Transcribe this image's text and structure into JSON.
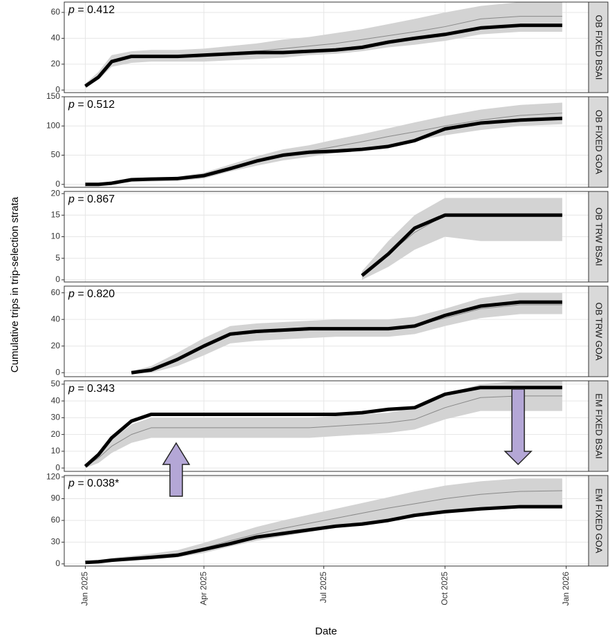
{
  "ylabel": "Cumulative trips in trip-selection strata",
  "xlabel": "Date",
  "xlim": [
    -16,
    382
  ],
  "xticks": [
    {
      "value": 0,
      "label": "Jan 2025"
    },
    {
      "value": 90,
      "label": "Apr 2025"
    },
    {
      "value": 181,
      "label": "Jul 2025"
    },
    {
      "value": 273,
      "label": "Oct 2025"
    },
    {
      "value": 365,
      "label": "Jan 2026"
    }
  ],
  "chart_data": [
    {
      "type": "line",
      "strip": "OB FIXED BSAI",
      "stat_symbol": "p",
      "stat_value": "= 0.412",
      "ylim": [
        -2,
        68
      ],
      "yticks": [
        0,
        20,
        40,
        60
      ],
      "x": [
        0,
        10,
        20,
        35,
        50,
        70,
        90,
        110,
        130,
        150,
        170,
        190,
        210,
        230,
        250,
        273,
        300,
        330,
        362
      ],
      "band": {
        "color": "#d3d3d3",
        "lower": [
          2,
          8,
          18,
          21,
          22,
          22,
          22,
          23,
          24,
          25,
          27,
          28,
          30,
          33,
          35,
          38,
          43,
          45,
          45
        ],
        "upper": [
          5,
          14,
          27,
          30,
          31,
          31,
          32,
          34,
          36,
          39,
          41,
          44,
          47,
          51,
          55,
          60,
          65,
          68,
          68
        ]
      },
      "series": [
        {
          "color": "#888888",
          "values": [
            3,
            11,
            22,
            25,
            26,
            26,
            27,
            29,
            30,
            32,
            34,
            36,
            39,
            42,
            45,
            49,
            55,
            57,
            57
          ]
        },
        {
          "color": "#000000",
          "values": [
            3,
            10,
            22,
            26,
            26,
            26,
            27,
            28,
            29,
            29,
            30,
            31,
            33,
            37,
            40,
            43,
            48,
            50,
            50
          ]
        }
      ]
    },
    {
      "type": "line",
      "strip": "OB FIXED GOA",
      "stat_symbol": "p",
      "stat_value": "= 0.512",
      "ylim": [
        -5,
        150
      ],
      "yticks": [
        0,
        50,
        100,
        150
      ],
      "x": [
        0,
        10,
        20,
        35,
        50,
        70,
        90,
        110,
        130,
        150,
        170,
        190,
        210,
        230,
        250,
        273,
        300,
        330,
        362
      ],
      "band": {
        "color": "#d3d3d3",
        "lower": [
          0,
          0,
          0,
          4,
          5,
          6,
          10,
          22,
          32,
          41,
          47,
          54,
          61,
          68,
          75,
          84,
          93,
          100,
          103
        ],
        "upper": [
          2,
          2,
          5,
          11,
          12,
          13,
          20,
          34,
          48,
          60,
          67,
          77,
          86,
          96,
          106,
          117,
          128,
          136,
          140
        ]
      },
      "series": [
        {
          "color": "#888888",
          "values": [
            0,
            0,
            2,
            7,
            8,
            9,
            15,
            28,
            40,
            50,
            57,
            65,
            73,
            82,
            90,
            100,
            110,
            118,
            122
          ]
        },
        {
          "color": "#000000",
          "values": [
            0,
            0,
            2,
            8,
            9,
            10,
            15,
            27,
            40,
            50,
            55,
            57,
            60,
            65,
            75,
            95,
            105,
            110,
            113
          ]
        }
      ]
    },
    {
      "type": "line",
      "strip": "OB TRW BSAI",
      "stat_symbol": "p",
      "stat_value": "= 0.867",
      "ylim": [
        -0.5,
        20.5
      ],
      "yticks": [
        0,
        5,
        10,
        15,
        20
      ],
      "x": [
        210,
        230,
        250,
        273,
        300,
        330,
        362
      ],
      "band": {
        "color": "#d3d3d3",
        "lower": [
          0,
          3,
          7,
          10,
          9,
          9,
          9
        ],
        "upper": [
          2,
          9,
          15,
          19,
          19,
          19,
          19
        ]
      },
      "series": [
        {
          "color": "#888888",
          "values": [
            1,
            6,
            11,
            15,
            15,
            15,
            15
          ]
        },
        {
          "color": "#000000",
          "values": [
            1,
            6,
            12,
            15,
            15,
            15,
            15
          ]
        }
      ]
    },
    {
      "type": "line",
      "strip": "OB TRW GOA",
      "stat_symbol": "p",
      "stat_value": "= 0.820",
      "ylim": [
        -3,
        65
      ],
      "yticks": [
        0,
        20,
        40,
        60
      ],
      "x": [
        35,
        50,
        70,
        90,
        110,
        130,
        150,
        170,
        190,
        210,
        230,
        250,
        273,
        300,
        330,
        362
      ],
      "band": {
        "color": "#d3d3d3",
        "lower": [
          0,
          0,
          5,
          13,
          22,
          24,
          25,
          26,
          27,
          27,
          27,
          29,
          35,
          41,
          44,
          44
        ],
        "upper": [
          1,
          5,
          15,
          26,
          35,
          37,
          38,
          39,
          40,
          40,
          40,
          42,
          48,
          56,
          60,
          60
        ]
      },
      "series": [
        {
          "color": "#888888",
          "values": [
            0,
            2,
            10,
            19,
            28,
            30,
            31,
            32,
            33,
            33,
            33,
            35,
            41,
            48,
            51,
            51
          ]
        },
        {
          "color": "#000000",
          "values": [
            0,
            2,
            10,
            20,
            29,
            31,
            32,
            33,
            33,
            33,
            33,
            35,
            43,
            50,
            53,
            53
          ]
        }
      ]
    },
    {
      "type": "line",
      "strip": "EM FIXED BSAI",
      "stat_symbol": "p",
      "stat_value": "= 0.343",
      "ylim": [
        -2,
        52
      ],
      "yticks": [
        0,
        10,
        20,
        30,
        40,
        50
      ],
      "x": [
        0,
        10,
        20,
        35,
        50,
        70,
        90,
        110,
        130,
        150,
        170,
        190,
        210,
        230,
        250,
        273,
        300,
        330,
        362
      ],
      "band": {
        "color": "#d3d3d3",
        "lower": [
          0,
          3,
          9,
          15,
          18,
          18,
          18,
          18,
          18,
          18,
          18,
          19,
          20,
          21,
          23,
          29,
          34,
          34,
          34
        ],
        "upper": [
          2,
          9,
          17,
          26,
          30,
          30,
          30,
          30,
          30,
          30,
          30,
          31,
          32,
          33,
          36,
          44,
          50,
          52,
          52
        ]
      },
      "series": [
        {
          "color": "#888888",
          "values": [
            1,
            6,
            13,
            20,
            24,
            24,
            24,
            24,
            24,
            24,
            24,
            25,
            26,
            27,
            29,
            36,
            42,
            43,
            43
          ]
        },
        {
          "color": "#000000",
          "values": [
            1,
            8,
            18,
            28,
            32,
            32,
            32,
            32,
            32,
            32,
            32,
            32,
            33,
            35,
            36,
            44,
            48,
            48,
            48
          ]
        }
      ]
    },
    {
      "type": "line",
      "strip": "EM FIXED GOA",
      "stat_symbol": "p",
      "stat_value": "= 0.038*",
      "ylim": [
        -3,
        122
      ],
      "yticks": [
        0,
        30,
        60,
        90,
        120
      ],
      "x": [
        0,
        10,
        20,
        35,
        50,
        70,
        90,
        110,
        130,
        150,
        170,
        190,
        210,
        230,
        250,
        273,
        300,
        330,
        362
      ],
      "band": {
        "color": "#d3d3d3",
        "lower": [
          0,
          1,
          3,
          4,
          6,
          9,
          15,
          24,
          32,
          38,
          44,
          50,
          56,
          61,
          66,
          72,
          77,
          80,
          81
        ],
        "upper": [
          4,
          5,
          8,
          11,
          14,
          19,
          29,
          40,
          51,
          60,
          68,
          76,
          84,
          92,
          100,
          108,
          114,
          118,
          118
        ]
      },
      "series": [
        {
          "color": "#888888",
          "values": [
            2,
            3,
            5,
            7,
            10,
            14,
            22,
            32,
            41,
            49,
            56,
            63,
            70,
            77,
            83,
            90,
            96,
            100,
            101
          ]
        },
        {
          "color": "#000000",
          "values": [
            2,
            3,
            5,
            7,
            9,
            12,
            20,
            28,
            37,
            42,
            47,
            52,
            55,
            60,
            67,
            72,
            76,
            79,
            79
          ]
        }
      ]
    }
  ]
}
